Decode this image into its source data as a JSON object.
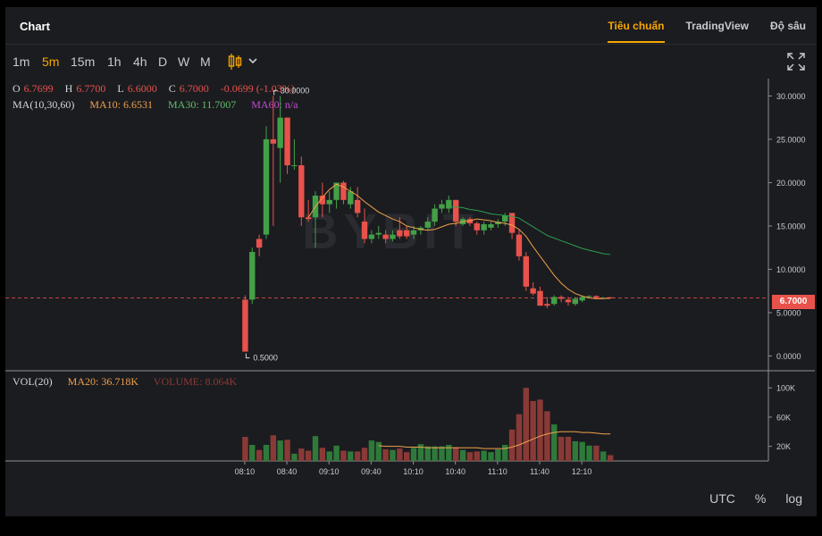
{
  "header": {
    "title": "Chart",
    "tabs": [
      "Tiêu chuẩn",
      "TradingView",
      "Độ sâu"
    ]
  },
  "toolbar": {
    "timeframes": [
      "1m",
      "5m",
      "15m",
      "1h",
      "4h",
      "D",
      "W",
      "M"
    ],
    "active_timeframe": "5m",
    "chart_type_icon": "candles-icon",
    "dropdown_icon": "chevron-down-icon",
    "fullscreen_icon": "expand-icon"
  },
  "ohlc": {
    "o_label": "O",
    "o_value": "6.7699",
    "h_label": "H",
    "h_value": "6.7700",
    "l_label": "L",
    "l_value": "6.6000",
    "c_label": "C",
    "c_value": "6.7000",
    "change": "-0.0699 (-1.03%)"
  },
  "ma": {
    "label": "MA(10,30,60)",
    "ma10": "MA10: 6.6531",
    "ma30": "MA30: 11.7007",
    "ma60": "MA60: n/a"
  },
  "vol": {
    "label": "VOL(20)",
    "ma20": "MA20: 36.718K",
    "volume": "VOLUME: 8.064K"
  },
  "watermark": "BYBIT",
  "last_price_badge": "6.7000",
  "footer": {
    "utc": "UTC",
    "percent": "%",
    "log": "log"
  },
  "colors": {
    "up": "#43a047",
    "down": "#e8524b",
    "accent": "#f7a600",
    "ma10": "#f0a04b",
    "ma30": "#2e9e4f",
    "ma60": "#c24bd0"
  },
  "chart_data": {
    "type": "candlestick",
    "price_axis": {
      "ticks": [
        "30.0000",
        "25.0000",
        "20.0000",
        "15.0000",
        "10.0000",
        "5.0000",
        "0.0000"
      ],
      "ylim": [
        -1.5,
        32
      ]
    },
    "volume_axis": {
      "ticks": [
        "100K",
        "60K",
        "20K"
      ],
      "ylim": [
        0,
        110
      ]
    },
    "x_ticks": [
      "08:10",
      "08:40",
      "09:10",
      "09:40",
      "10:10",
      "10:40",
      "11:10",
      "11:40",
      "12:10"
    ],
    "high_marker": "30.0000",
    "low_marker": "0.5000",
    "candles": [
      {
        "o": 6.5,
        "h": 7.0,
        "l": 0.5,
        "c": 0.5
      },
      {
        "o": 6.5,
        "h": 12.5,
        "l": 6.0,
        "c": 12.0
      },
      {
        "o": 13.5,
        "h": 14.0,
        "l": 11.5,
        "c": 12.5
      },
      {
        "o": 14.0,
        "h": 26.5,
        "l": 13.5,
        "c": 25.0
      },
      {
        "o": 25.0,
        "h": 30.0,
        "l": 15.0,
        "c": 24.5
      },
      {
        "o": 24.0,
        "h": 30.0,
        "l": 20.0,
        "c": 27.5
      },
      {
        "o": 27.5,
        "h": 27.5,
        "l": 21.0,
        "c": 22.0
      },
      {
        "o": 22.0,
        "h": 25.0,
        "l": 21.5,
        "c": 22.0
      },
      {
        "o": 22.0,
        "h": 23.0,
        "l": 15.0,
        "c": 16.0
      },
      {
        "o": 16.0,
        "h": 18.0,
        "l": 15.5,
        "c": 15.8
      },
      {
        "o": 16.0,
        "h": 19.0,
        "l": 12.5,
        "c": 18.5
      },
      {
        "o": 18.5,
        "h": 20.0,
        "l": 16.0,
        "c": 17.5
      },
      {
        "o": 17.5,
        "h": 19.0,
        "l": 16.5,
        "c": 18.0
      },
      {
        "o": 18.0,
        "h": 20.0,
        "l": 17.0,
        "c": 20.0
      },
      {
        "o": 20.0,
        "h": 20.2,
        "l": 17.5,
        "c": 18.0
      },
      {
        "o": 17.5,
        "h": 19.5,
        "l": 17.0,
        "c": 19.0
      },
      {
        "o": 18.0,
        "h": 19.5,
        "l": 16.0,
        "c": 16.5
      },
      {
        "o": 15.5,
        "h": 17.0,
        "l": 13.0,
        "c": 13.5
      },
      {
        "o": 13.5,
        "h": 14.5,
        "l": 13.0,
        "c": 14.0
      },
      {
        "o": 14.0,
        "h": 15.0,
        "l": 13.5,
        "c": 14.2
      },
      {
        "o": 14.0,
        "h": 14.5,
        "l": 13.0,
        "c": 13.5
      },
      {
        "o": 13.5,
        "h": 14.5,
        "l": 13.2,
        "c": 14.0
      },
      {
        "o": 14.5,
        "h": 16.0,
        "l": 13.5,
        "c": 13.8
      },
      {
        "o": 14.5,
        "h": 15.0,
        "l": 13.5,
        "c": 13.8
      },
      {
        "o": 14.0,
        "h": 15.0,
        "l": 13.5,
        "c": 14.5
      },
      {
        "o": 14.5,
        "h": 15.0,
        "l": 14.0,
        "c": 14.8
      },
      {
        "o": 14.8,
        "h": 16.0,
        "l": 14.5,
        "c": 15.5
      },
      {
        "o": 15.5,
        "h": 17.5,
        "l": 15.0,
        "c": 17.0
      },
      {
        "o": 17.0,
        "h": 18.0,
        "l": 16.5,
        "c": 17.5
      },
      {
        "o": 17.0,
        "h": 18.5,
        "l": 16.5,
        "c": 18.0
      },
      {
        "o": 18.0,
        "h": 18.0,
        "l": 15.0,
        "c": 15.5
      },
      {
        "o": 15.2,
        "h": 16.0,
        "l": 15.0,
        "c": 15.8
      },
      {
        "o": 15.8,
        "h": 16.0,
        "l": 15.0,
        "c": 15.3
      },
      {
        "o": 15.3,
        "h": 15.5,
        "l": 14.0,
        "c": 14.5
      },
      {
        "o": 14.5,
        "h": 15.5,
        "l": 14.0,
        "c": 15.2
      },
      {
        "o": 14.8,
        "h": 15.5,
        "l": 14.5,
        "c": 15.2
      },
      {
        "o": 15.2,
        "h": 15.8,
        "l": 14.8,
        "c": 15.5
      },
      {
        "o": 15.5,
        "h": 16.5,
        "l": 15.0,
        "c": 16.2
      },
      {
        "o": 16.5,
        "h": 16.5,
        "l": 13.5,
        "c": 14.2
      },
      {
        "o": 14.0,
        "h": 14.5,
        "l": 11.0,
        "c": 11.5
      },
      {
        "o": 11.5,
        "h": 12.0,
        "l": 7.5,
        "c": 8.0
      },
      {
        "o": 7.8,
        "h": 8.5,
        "l": 7.0,
        "c": 7.2
      },
      {
        "o": 7.5,
        "h": 8.0,
        "l": 5.8,
        "c": 5.8
      },
      {
        "o": 6.0,
        "h": 6.8,
        "l": 5.5,
        "c": 5.8
      },
      {
        "o": 6.0,
        "h": 7.0,
        "l": 5.8,
        "c": 6.8
      },
      {
        "o": 6.8,
        "h": 7.0,
        "l": 6.2,
        "c": 6.6
      },
      {
        "o": 6.5,
        "h": 6.8,
        "l": 5.8,
        "c": 6.2
      },
      {
        "o": 6.0,
        "h": 6.8,
        "l": 5.8,
        "c": 6.6
      },
      {
        "o": 6.4,
        "h": 7.0,
        "l": 6.2,
        "c": 6.8
      },
      {
        "o": 6.8,
        "h": 7.0,
        "l": 6.7,
        "c": 6.9
      },
      {
        "o": 6.9,
        "h": 7.0,
        "l": 6.6,
        "c": 6.7
      },
      {
        "o": 6.7,
        "h": 6.8,
        "l": 6.6,
        "c": 6.7
      },
      {
        "o": 6.77,
        "h": 6.77,
        "l": 6.6,
        "c": 6.7
      }
    ],
    "volumes": [
      33,
      22,
      15,
      22,
      35,
      28,
      29,
      10,
      17,
      14,
      34,
      18,
      13,
      21,
      14,
      13,
      13,
      18,
      28,
      26,
      16,
      15,
      17,
      12,
      18,
      23,
      20,
      20,
      20,
      22,
      19,
      15,
      12,
      13,
      14,
      12,
      16,
      22,
      43,
      64,
      100,
      82,
      84,
      68,
      50,
      33,
      33,
      27,
      26,
      21,
      21,
      13,
      8
    ],
    "ma10": [
      null,
      null,
      null,
      null,
      null,
      null,
      null,
      null,
      null,
      16.0,
      17.2,
      18.3,
      19.2,
      19.8,
      19.5,
      19.0,
      18.5,
      17.8,
      17.2,
      16.6,
      16.2,
      15.8,
      15.5,
      15.0,
      14.8,
      14.6,
      14.5,
      14.6,
      14.9,
      15.2,
      15.3,
      15.5,
      15.6,
      15.8,
      15.7,
      15.6,
      15.4,
      15.3,
      15.1,
      14.6,
      13.8,
      12.6,
      11.5,
      10.4,
      9.3,
      8.4,
      7.7,
      7.2,
      6.9,
      6.7,
      6.6,
      6.62,
      6.65
    ],
    "ma30": [
      null,
      null,
      null,
      null,
      null,
      null,
      null,
      null,
      null,
      null,
      null,
      null,
      null,
      null,
      null,
      null,
      null,
      null,
      null,
      null,
      null,
      null,
      null,
      null,
      null,
      null,
      null,
      null,
      null,
      17.2,
      17.2,
      17.1,
      16.9,
      16.8,
      16.6,
      16.4,
      16.3,
      16.2,
      16.1,
      15.9,
      15.4,
      14.9,
      14.4,
      13.9,
      13.6,
      13.3,
      13.0,
      12.7,
      12.4,
      12.2,
      12.0,
      11.8,
      11.7
    ],
    "vol_ma20": [
      null,
      null,
      null,
      null,
      null,
      null,
      null,
      null,
      null,
      null,
      null,
      null,
      null,
      null,
      null,
      null,
      null,
      null,
      null,
      21,
      20,
      20,
      20,
      19,
      19,
      19,
      18,
      18,
      18,
      18,
      18,
      18,
      18,
      18,
      17,
      17,
      17,
      17,
      19,
      22,
      26,
      30,
      34,
      37,
      39,
      40,
      40,
      40,
      39,
      39,
      38,
      37,
      37
    ]
  }
}
